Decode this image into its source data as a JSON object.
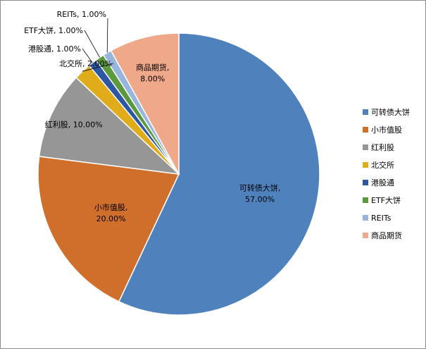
{
  "chart_data": {
    "type": "pie",
    "title": "",
    "start_angle_deg": 0,
    "direction": "clockwise",
    "categories": [
      "可转债大饼",
      "小市值股",
      "红利股",
      "北交所",
      "港股通",
      "ETF大饼",
      "REITs",
      "商品期货"
    ],
    "values": [
      57.0,
      20.0,
      10.0,
      2.0,
      1.0,
      1.0,
      1.0,
      8.0
    ],
    "value_format": "percent",
    "data_labels": [
      "可转债大饼, 57.00%",
      "小市值股, 20.00%",
      "红利股, 10.00%",
      "北交所, 2.00%",
      "港股通, 1.00%",
      "ETF大饼, 1.00%",
      "REITs, 1.00%",
      "商品期货, 8.00%"
    ],
    "colors": [
      "#4f81bd",
      "#d06f2b",
      "#969696",
      "#e0ac1a",
      "#2e57a3",
      "#5a9a3c",
      "#98b6dd",
      "#f0a88a"
    ],
    "legend_position": "right"
  }
}
